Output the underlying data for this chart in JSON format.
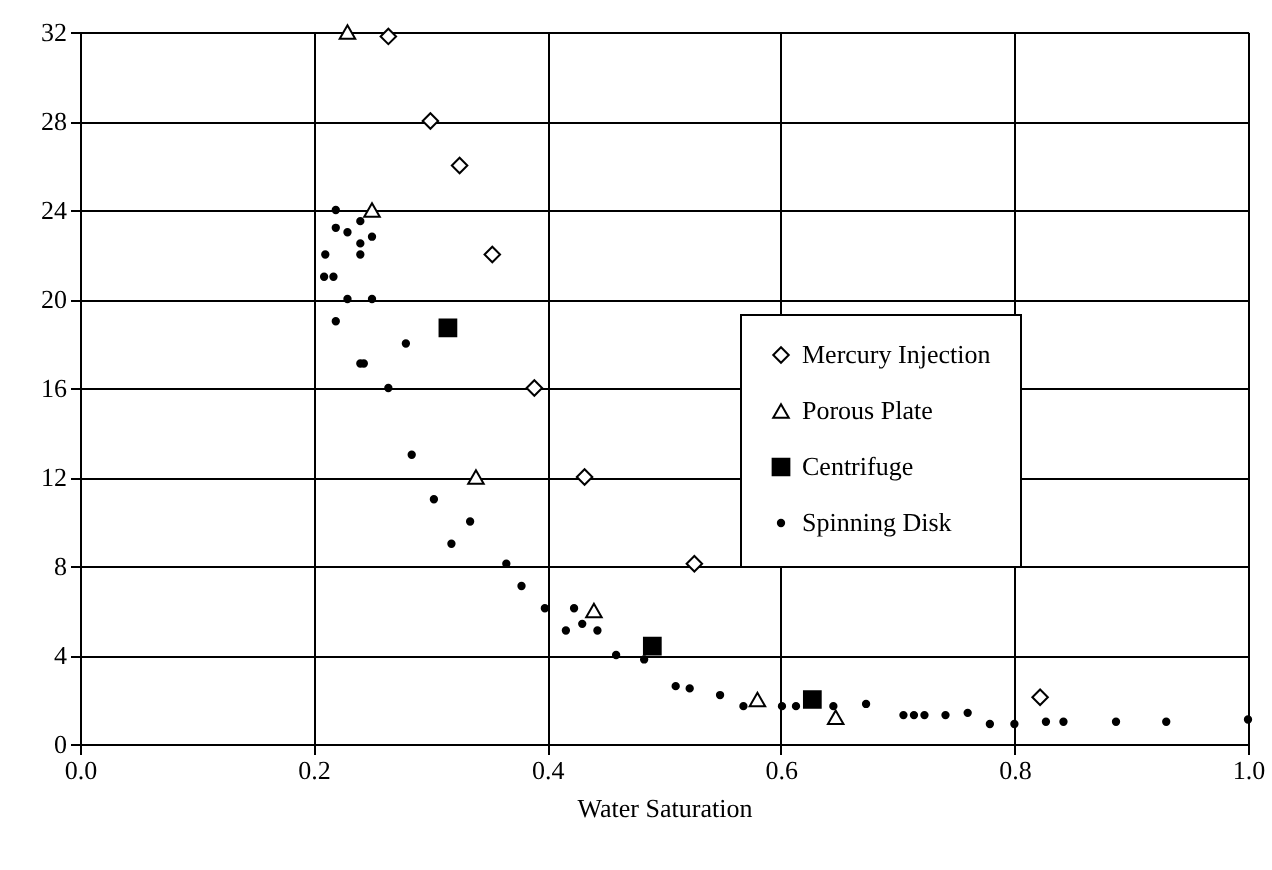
{
  "chart_data": {
    "type": "scatter",
    "xlabel": "Water Saturation",
    "xlim": [
      0,
      1
    ],
    "ylim": [
      0,
      32
    ],
    "xticks": [
      {
        "value": 0,
        "label": "0.0"
      },
      {
        "value": 0.2,
        "label": "0.2"
      },
      {
        "value": 0.4,
        "label": "0.4"
      },
      {
        "value": 0.6,
        "label": "0.6"
      },
      {
        "value": 0.8,
        "label": "0.8"
      },
      {
        "value": 1,
        "label": "1.0"
      }
    ],
    "yticks": [
      0,
      4,
      8,
      12,
      16,
      20,
      24,
      28,
      32
    ],
    "grid": true,
    "legend": "right",
    "series": [
      {
        "name": "Mercury Injection",
        "color": "#000000",
        "marker": "diamond",
        "x": [
          0.264,
          0.3,
          0.325,
          0.353,
          0.389,
          0.432,
          0.526,
          0.822
        ],
        "values": [
          31.8,
          28,
          26,
          22,
          16,
          12,
          8.1,
          2.1
        ]
      },
      {
        "name": "Porous Plate",
        "color": "#000000",
        "marker": "triangle",
        "x": [
          0.229,
          0.25,
          0.339,
          0.44,
          0.58,
          0.647
        ],
        "values": [
          32,
          24,
          12,
          6,
          2,
          1.2
        ]
      },
      {
        "name": "Centrifuge",
        "color": "#000000",
        "marker": "square",
        "x": [
          0.315,
          0.49,
          0.627
        ],
        "values": [
          18.7,
          4.4,
          2
        ]
      },
      {
        "name": "Spinning Disk",
        "color": "#000000",
        "marker": "circle",
        "x": [
          0.219,
          0.219,
          0.229,
          0.24,
          0.25,
          0.24,
          0.21,
          0.24,
          0.209,
          0.217,
          0.229,
          0.25,
          0.219,
          0.279,
          0.24,
          0.243,
          0.264,
          0.284,
          0.303,
          0.334,
          0.318,
          0.365,
          0.378,
          0.398,
          0.423,
          0.416,
          0.43,
          0.443,
          0.459,
          0.483,
          0.51,
          0.522,
          0.548,
          0.568,
          0.601,
          0.613,
          0.645,
          0.673,
          0.705,
          0.714,
          0.723,
          0.741,
          0.76,
          0.779,
          0.8,
          0.827,
          0.842,
          0.887,
          0.93,
          1.0
        ],
        "values": [
          24,
          23.2,
          23,
          23.5,
          22.8,
          22.5,
          22,
          22,
          21,
          21,
          20,
          20,
          19,
          18,
          17.1,
          17.1,
          16,
          13,
          11,
          10,
          9,
          8.1,
          7.1,
          6.1,
          6.1,
          5.1,
          5.4,
          5.1,
          4,
          3.8,
          2.6,
          2.5,
          2.2,
          1.7,
          1.7,
          1.7,
          1.7,
          1.8,
          1.3,
          1.3,
          1.3,
          1.3,
          1.4,
          0.9,
          0.9,
          1,
          1,
          1,
          1,
          1.1
        ]
      }
    ]
  }
}
